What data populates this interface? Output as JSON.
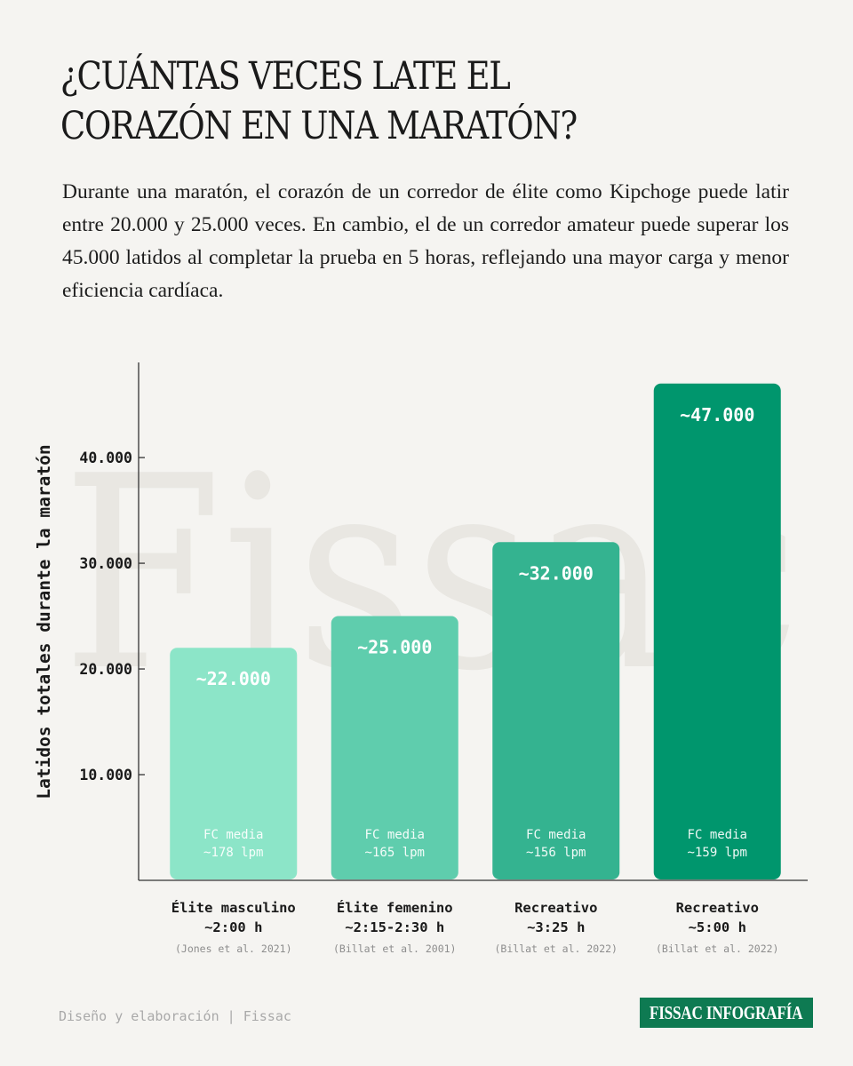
{
  "title": "¿CUÁNTAS VECES LATE EL CORAZÓN EN UNA MARATÓN?",
  "subtitle": "Durante una maratón, el corazón de un corredor de élite como Kipchoge puede latir entre 20.000 y 25.000 veces. En cambio, el de un corredor amateur puede superar los 45.000 latidos al completar la prueba en 5 horas, reflejando una mayor carga y menor eficiencia cardíaca.",
  "watermark": "Fissac",
  "chart_data": {
    "type": "bar",
    "ylabel": "Latidos totales durante la maratón",
    "ylim": [
      0,
      49000
    ],
    "yticks": [
      {
        "value": 10000,
        "label": "10.000"
      },
      {
        "value": 20000,
        "label": "20.000"
      },
      {
        "value": 30000,
        "label": "30.000"
      },
      {
        "value": 40000,
        "label": "40.000"
      }
    ],
    "categories": [
      {
        "name": "Élite masculino",
        "time": "~2:00 h",
        "source": "(Jones et al. 2021)"
      },
      {
        "name": "Élite femenino",
        "time": "~2:15-2:30 h",
        "source": "(Billat et al. 2001)"
      },
      {
        "name": "Recreativo",
        "time": "~3:25 h",
        "source": "(Billat et al. 2022)"
      },
      {
        "name": "Recreativo",
        "time": "~5:00 h",
        "source": "(Billat et al. 2022)"
      }
    ],
    "values": [
      22000,
      25000,
      32000,
      47000
    ],
    "value_labels": [
      "~22.000",
      "~25.000",
      "~32.000",
      "~47.000"
    ],
    "hr_label": "FC media",
    "hr_values": [
      "~178 lpm",
      "~165 lpm",
      "~156 lpm",
      "~159 lpm"
    ],
    "colors": [
      "#8ce5c8",
      "#5fcdad",
      "#34b390",
      "#00966d"
    ],
    "grid": false
  },
  "footer": {
    "credit": "Diseño y elaboración | Fissac",
    "brand": "FISSAC INFOGRAFÍA"
  }
}
